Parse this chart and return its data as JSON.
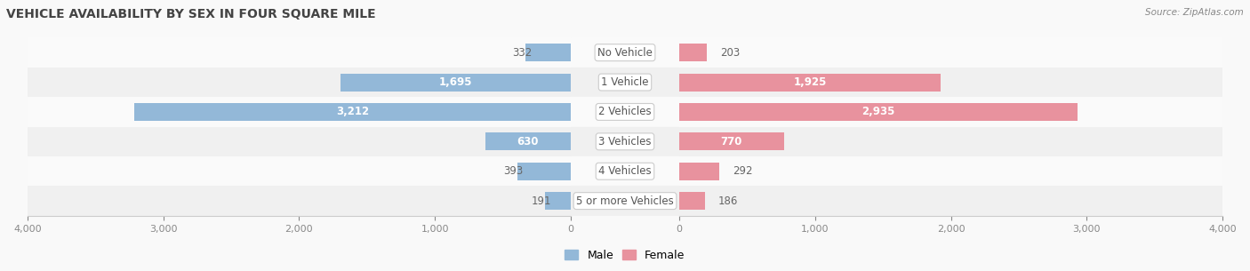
{
  "title": "VEHICLE AVAILABILITY BY SEX IN FOUR SQUARE MILE",
  "source": "Source: ZipAtlas.com",
  "categories": [
    "No Vehicle",
    "1 Vehicle",
    "2 Vehicles",
    "3 Vehicles",
    "4 Vehicles",
    "5 or more Vehicles"
  ],
  "male_values": [
    332,
    1695,
    3212,
    630,
    393,
    191
  ],
  "female_values": [
    203,
    1925,
    2935,
    770,
    292,
    186
  ],
  "male_color": "#93b8d8",
  "female_color": "#e8929e",
  "axis_max": 4000,
  "label_color_inside": "#ffffff",
  "label_color_outside": "#666666",
  "label_fontsize": 8.5,
  "title_fontsize": 10,
  "category_fontsize": 8.5,
  "legend_fontsize": 9,
  "bar_height": 0.6,
  "row_bg_even": "#f0f0f0",
  "row_bg_odd": "#fafafa",
  "fig_bg": "#f9f9f9",
  "figsize": [
    14.06,
    3.05
  ],
  "dpi": 100,
  "inside_threshold": 0.12
}
